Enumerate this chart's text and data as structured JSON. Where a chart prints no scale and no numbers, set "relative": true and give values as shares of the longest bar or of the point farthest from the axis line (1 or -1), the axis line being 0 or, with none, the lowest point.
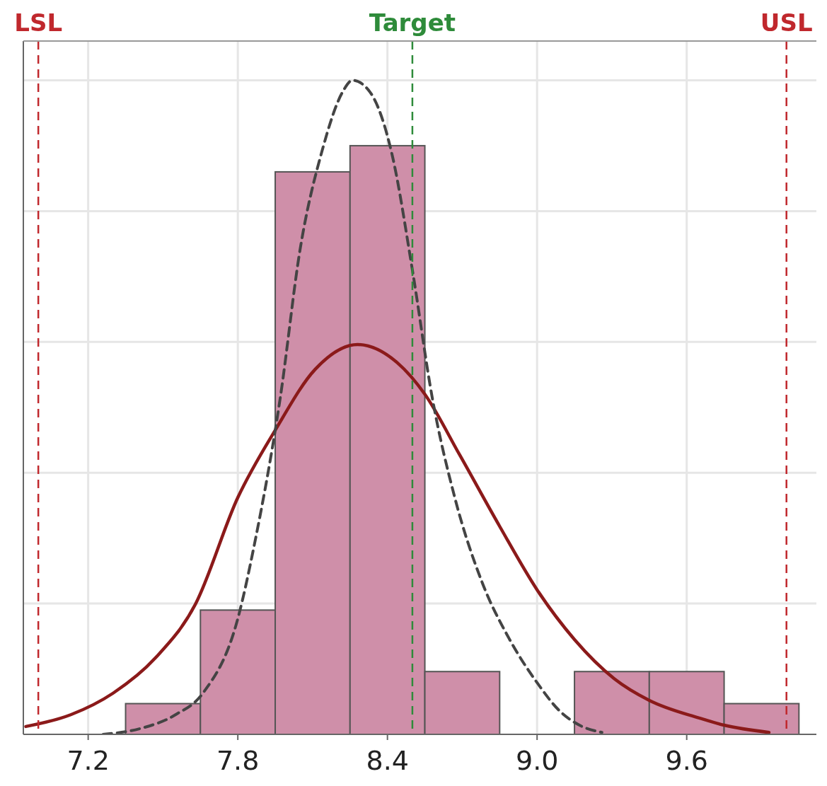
{
  "chart_data": {
    "type": "histogram",
    "relative": true,
    "xlim": [
      6.94,
      10.12
    ],
    "xticks": [
      {
        "value": 7.2,
        "label": "7.2"
      },
      {
        "value": 7.8,
        "label": "7.8"
      },
      {
        "value": 8.4,
        "label": "8.4"
      },
      {
        "value": 9.0,
        "label": "9.0"
      },
      {
        "value": 9.6,
        "label": "9.6"
      }
    ],
    "grid": true,
    "series": [
      {
        "type": "histogram",
        "color": "#cf8fa9",
        "bins": [
          7.35,
          7.65,
          7.95,
          8.25,
          8.55,
          8.85,
          9.15,
          9.45,
          9.75,
          10.05
        ],
        "values": [
          0.047,
          0.19,
          0.86,
          0.9,
          0.096,
          0,
          0.096,
          0.096,
          0.047
        ]
      },
      {
        "type": "line",
        "color": "#8b1a1a",
        "line_style": "solid",
        "x": [
          6.95,
          7.13,
          7.3,
          7.47,
          7.63,
          7.8,
          7.95,
          8.11,
          8.28,
          8.44,
          8.55,
          8.69,
          8.85,
          9.0,
          9.15,
          9.31,
          9.45,
          9.65,
          9.75,
          9.93
        ],
        "values": [
          0.012,
          0.03,
          0.063,
          0.117,
          0.199,
          0.362,
          0.465,
          0.558,
          0.596,
          0.568,
          0.52,
          0.427,
          0.318,
          0.221,
          0.145,
          0.085,
          0.052,
          0.025,
          0.014,
          0.003
        ]
      },
      {
        "type": "line",
        "color": "#444444",
        "line_style": "dashed",
        "x": [
          7.26,
          7.41,
          7.55,
          7.66,
          7.8,
          7.87,
          7.97,
          8.05,
          8.14,
          8.22,
          8.26,
          8.33,
          8.42,
          8.5,
          8.58,
          8.67,
          8.78,
          8.89,
          9.0,
          9.09,
          9.17,
          9.26
        ],
        "values": [
          0,
          0.009,
          0.03,
          0.063,
          0.177,
          0.297,
          0.514,
          0.742,
          0.895,
          0.982,
          1,
          0.982,
          0.884,
          0.71,
          0.514,
          0.362,
          0.232,
          0.145,
          0.079,
          0.036,
          0.014,
          0.003
        ]
      }
    ],
    "ref_lines": [
      {
        "axis": "x",
        "value": 7.0,
        "label": "LSL",
        "color": "#c0282d",
        "line_style": "dashed"
      },
      {
        "axis": "x",
        "value": 8.5,
        "label": "Target",
        "color": "#2e8b3a",
        "line_style": "dashed"
      },
      {
        "axis": "x",
        "value": 10.0,
        "label": "USL",
        "color": "#c0282d",
        "line_style": "dashed"
      }
    ]
  }
}
